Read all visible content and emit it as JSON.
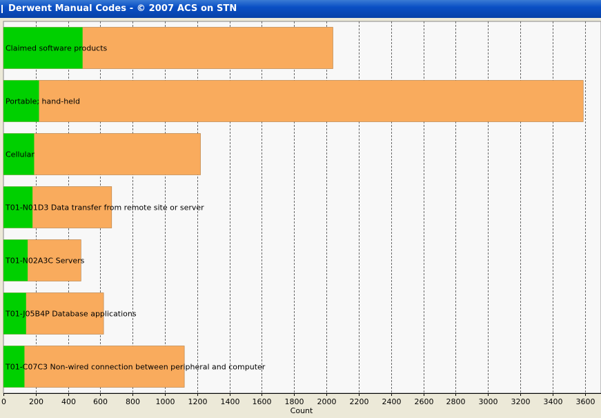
{
  "window": {
    "title": "Derwent Manual Codes - © 2007 ACS on STN"
  },
  "chart_data": {
    "type": "bar",
    "orientation": "horizontal",
    "stacked": false,
    "categories": [
      "Claimed software products",
      "Portable; hand-held",
      "Cellular",
      "T01-N01D3 Data transfer from remote site or server",
      "T01-N02A3C Servers",
      "T01-J05B4P Database applications",
      "T01-C07C3 Non-wired connection between peripheral and computer"
    ],
    "series": [
      {
        "color": "#f9ab5d",
        "values": [
          2040,
          3590,
          1220,
          670,
          480,
          620,
          1120
        ]
      },
      {
        "color": "#00d000",
        "values": [
          490,
          220,
          190,
          180,
          150,
          140,
          130
        ]
      }
    ],
    "xlabel": "Count",
    "xlim": [
      0,
      3700
    ],
    "xticks": [
      0,
      200,
      400,
      600,
      800,
      1000,
      1200,
      1400,
      1600,
      1800,
      2000,
      2200,
      2400,
      2600,
      2800,
      3000,
      3200,
      3400,
      3600
    ],
    "grid": "vertical dashed",
    "legend": "none",
    "colors": {
      "plot_background": "#f8f8f8",
      "frame": "#ece9d8"
    }
  }
}
